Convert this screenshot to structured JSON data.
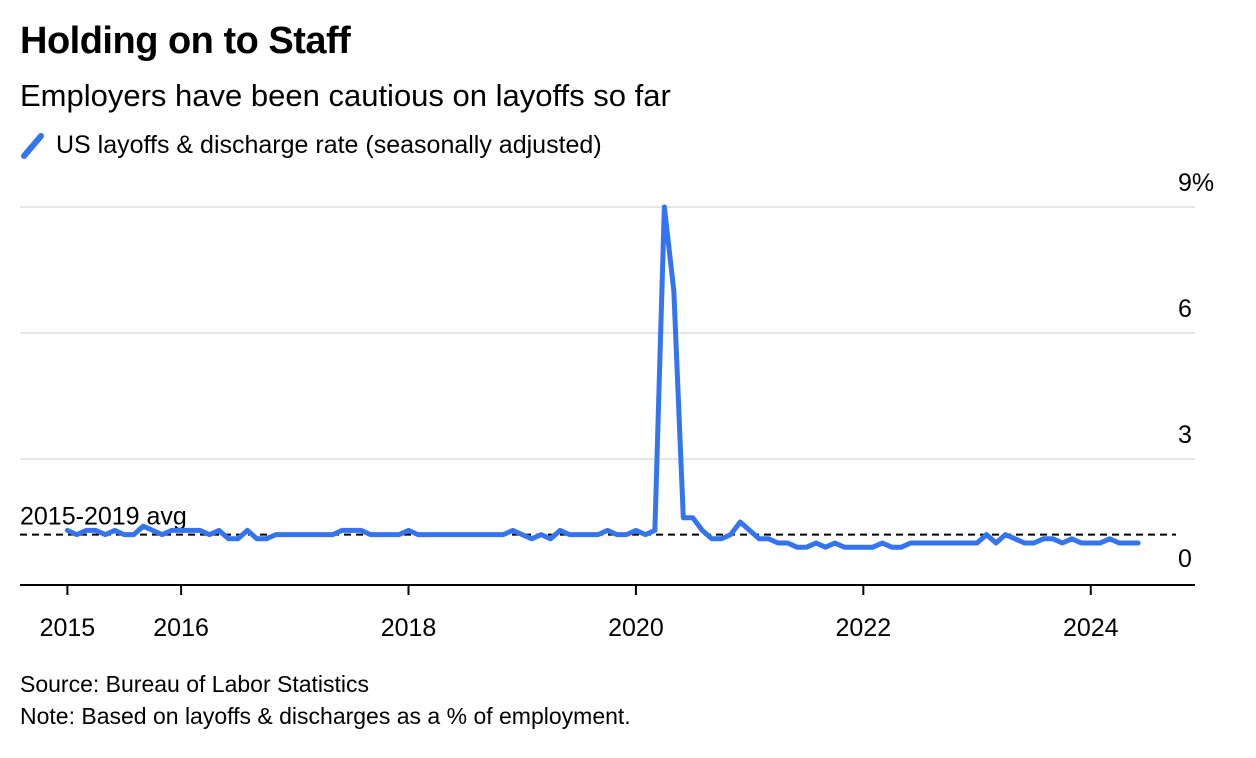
{
  "header": {
    "title": "Holding on to Staff",
    "subtitle": "Employers have been cautious on layoffs so far"
  },
  "legend": {
    "label": "US layoffs & discharge rate (seasonally adjusted)"
  },
  "footer": {
    "source": "Source: Bureau of Labor Statistics",
    "note": "Note: Based on layoffs & discharges as a % of employment."
  },
  "colors": {
    "series": "#3574f0",
    "grid": "#e6e6e6",
    "axis": "#000000"
  },
  "chart_data": {
    "type": "line",
    "title": "Holding on to Staff",
    "subtitle": "Employers have been cautious on layoffs so far",
    "series": [
      {
        "name": "US layoffs & discharge rate (seasonally adjusted)",
        "x": [
          "2015-01",
          "2015-02",
          "2015-03",
          "2015-04",
          "2015-05",
          "2015-06",
          "2015-07",
          "2015-08",
          "2015-09",
          "2015-10",
          "2015-11",
          "2015-12",
          "2016-01",
          "2016-02",
          "2016-03",
          "2016-04",
          "2016-05",
          "2016-06",
          "2016-07",
          "2016-08",
          "2016-09",
          "2016-10",
          "2016-11",
          "2016-12",
          "2017-01",
          "2017-02",
          "2017-03",
          "2017-04",
          "2017-05",
          "2017-06",
          "2017-07",
          "2017-08",
          "2017-09",
          "2017-10",
          "2017-11",
          "2017-12",
          "2018-01",
          "2018-02",
          "2018-03",
          "2018-04",
          "2018-05",
          "2018-06",
          "2018-07",
          "2018-08",
          "2018-09",
          "2018-10",
          "2018-11",
          "2018-12",
          "2019-01",
          "2019-02",
          "2019-03",
          "2019-04",
          "2019-05",
          "2019-06",
          "2019-07",
          "2019-08",
          "2019-09",
          "2019-10",
          "2019-11",
          "2019-12",
          "2020-01",
          "2020-02",
          "2020-03",
          "2020-04",
          "2020-05",
          "2020-06",
          "2020-07",
          "2020-08",
          "2020-09",
          "2020-10",
          "2020-11",
          "2020-12",
          "2021-01",
          "2021-02",
          "2021-03",
          "2021-04",
          "2021-05",
          "2021-06",
          "2021-07",
          "2021-08",
          "2021-09",
          "2021-10",
          "2021-11",
          "2021-12",
          "2022-01",
          "2022-02",
          "2022-03",
          "2022-04",
          "2022-05",
          "2022-06",
          "2022-07",
          "2022-08",
          "2022-09",
          "2022-10",
          "2022-11",
          "2022-12",
          "2023-01",
          "2023-02",
          "2023-03",
          "2023-04",
          "2023-05",
          "2023-06",
          "2023-07",
          "2023-08",
          "2023-09",
          "2023-10",
          "2023-11",
          "2023-12",
          "2024-01",
          "2024-02",
          "2024-03",
          "2024-04",
          "2024-05",
          "2024-06"
        ],
        "values": [
          1.3,
          1.2,
          1.3,
          1.3,
          1.2,
          1.3,
          1.2,
          1.2,
          1.4,
          1.3,
          1.2,
          1.3,
          1.3,
          1.3,
          1.3,
          1.2,
          1.3,
          1.1,
          1.1,
          1.3,
          1.1,
          1.1,
          1.2,
          1.2,
          1.2,
          1.2,
          1.2,
          1.2,
          1.2,
          1.3,
          1.3,
          1.3,
          1.2,
          1.2,
          1.2,
          1.2,
          1.3,
          1.2,
          1.2,
          1.2,
          1.2,
          1.2,
          1.2,
          1.2,
          1.2,
          1.2,
          1.2,
          1.3,
          1.2,
          1.1,
          1.2,
          1.1,
          1.3,
          1.2,
          1.2,
          1.2,
          1.2,
          1.3,
          1.2,
          1.2,
          1.3,
          1.2,
          1.3,
          9.0,
          7.0,
          1.6,
          1.6,
          1.3,
          1.1,
          1.1,
          1.2,
          1.5,
          1.3,
          1.1,
          1.1,
          1.0,
          1.0,
          0.9,
          0.9,
          1.0,
          0.9,
          1.0,
          0.9,
          0.9,
          0.9,
          0.9,
          1.0,
          0.9,
          0.9,
          1.0,
          1.0,
          1.0,
          1.0,
          1.0,
          1.0,
          1.0,
          1.0,
          1.2,
          1.0,
          1.2,
          1.1,
          1.0,
          1.0,
          1.1,
          1.1,
          1.0,
          1.1,
          1.0,
          1.0,
          1.0,
          1.1,
          1.0,
          1.0,
          1.0
        ]
      }
    ],
    "reference_line": {
      "label": "2015-2019 avg",
      "value": 1.2
    },
    "x_ticks": [
      "2015",
      "2016",
      "2018",
      "2020",
      "2022",
      "2024"
    ],
    "y_ticks": [
      "0",
      "3",
      "6",
      "9%"
    ],
    "y_tick_values": [
      0,
      3,
      6,
      9
    ],
    "ylim": [
      0,
      9
    ],
    "xlim": [
      "2014-08",
      "2024-12"
    ],
    "y_axis_side": "right",
    "grid": true
  }
}
